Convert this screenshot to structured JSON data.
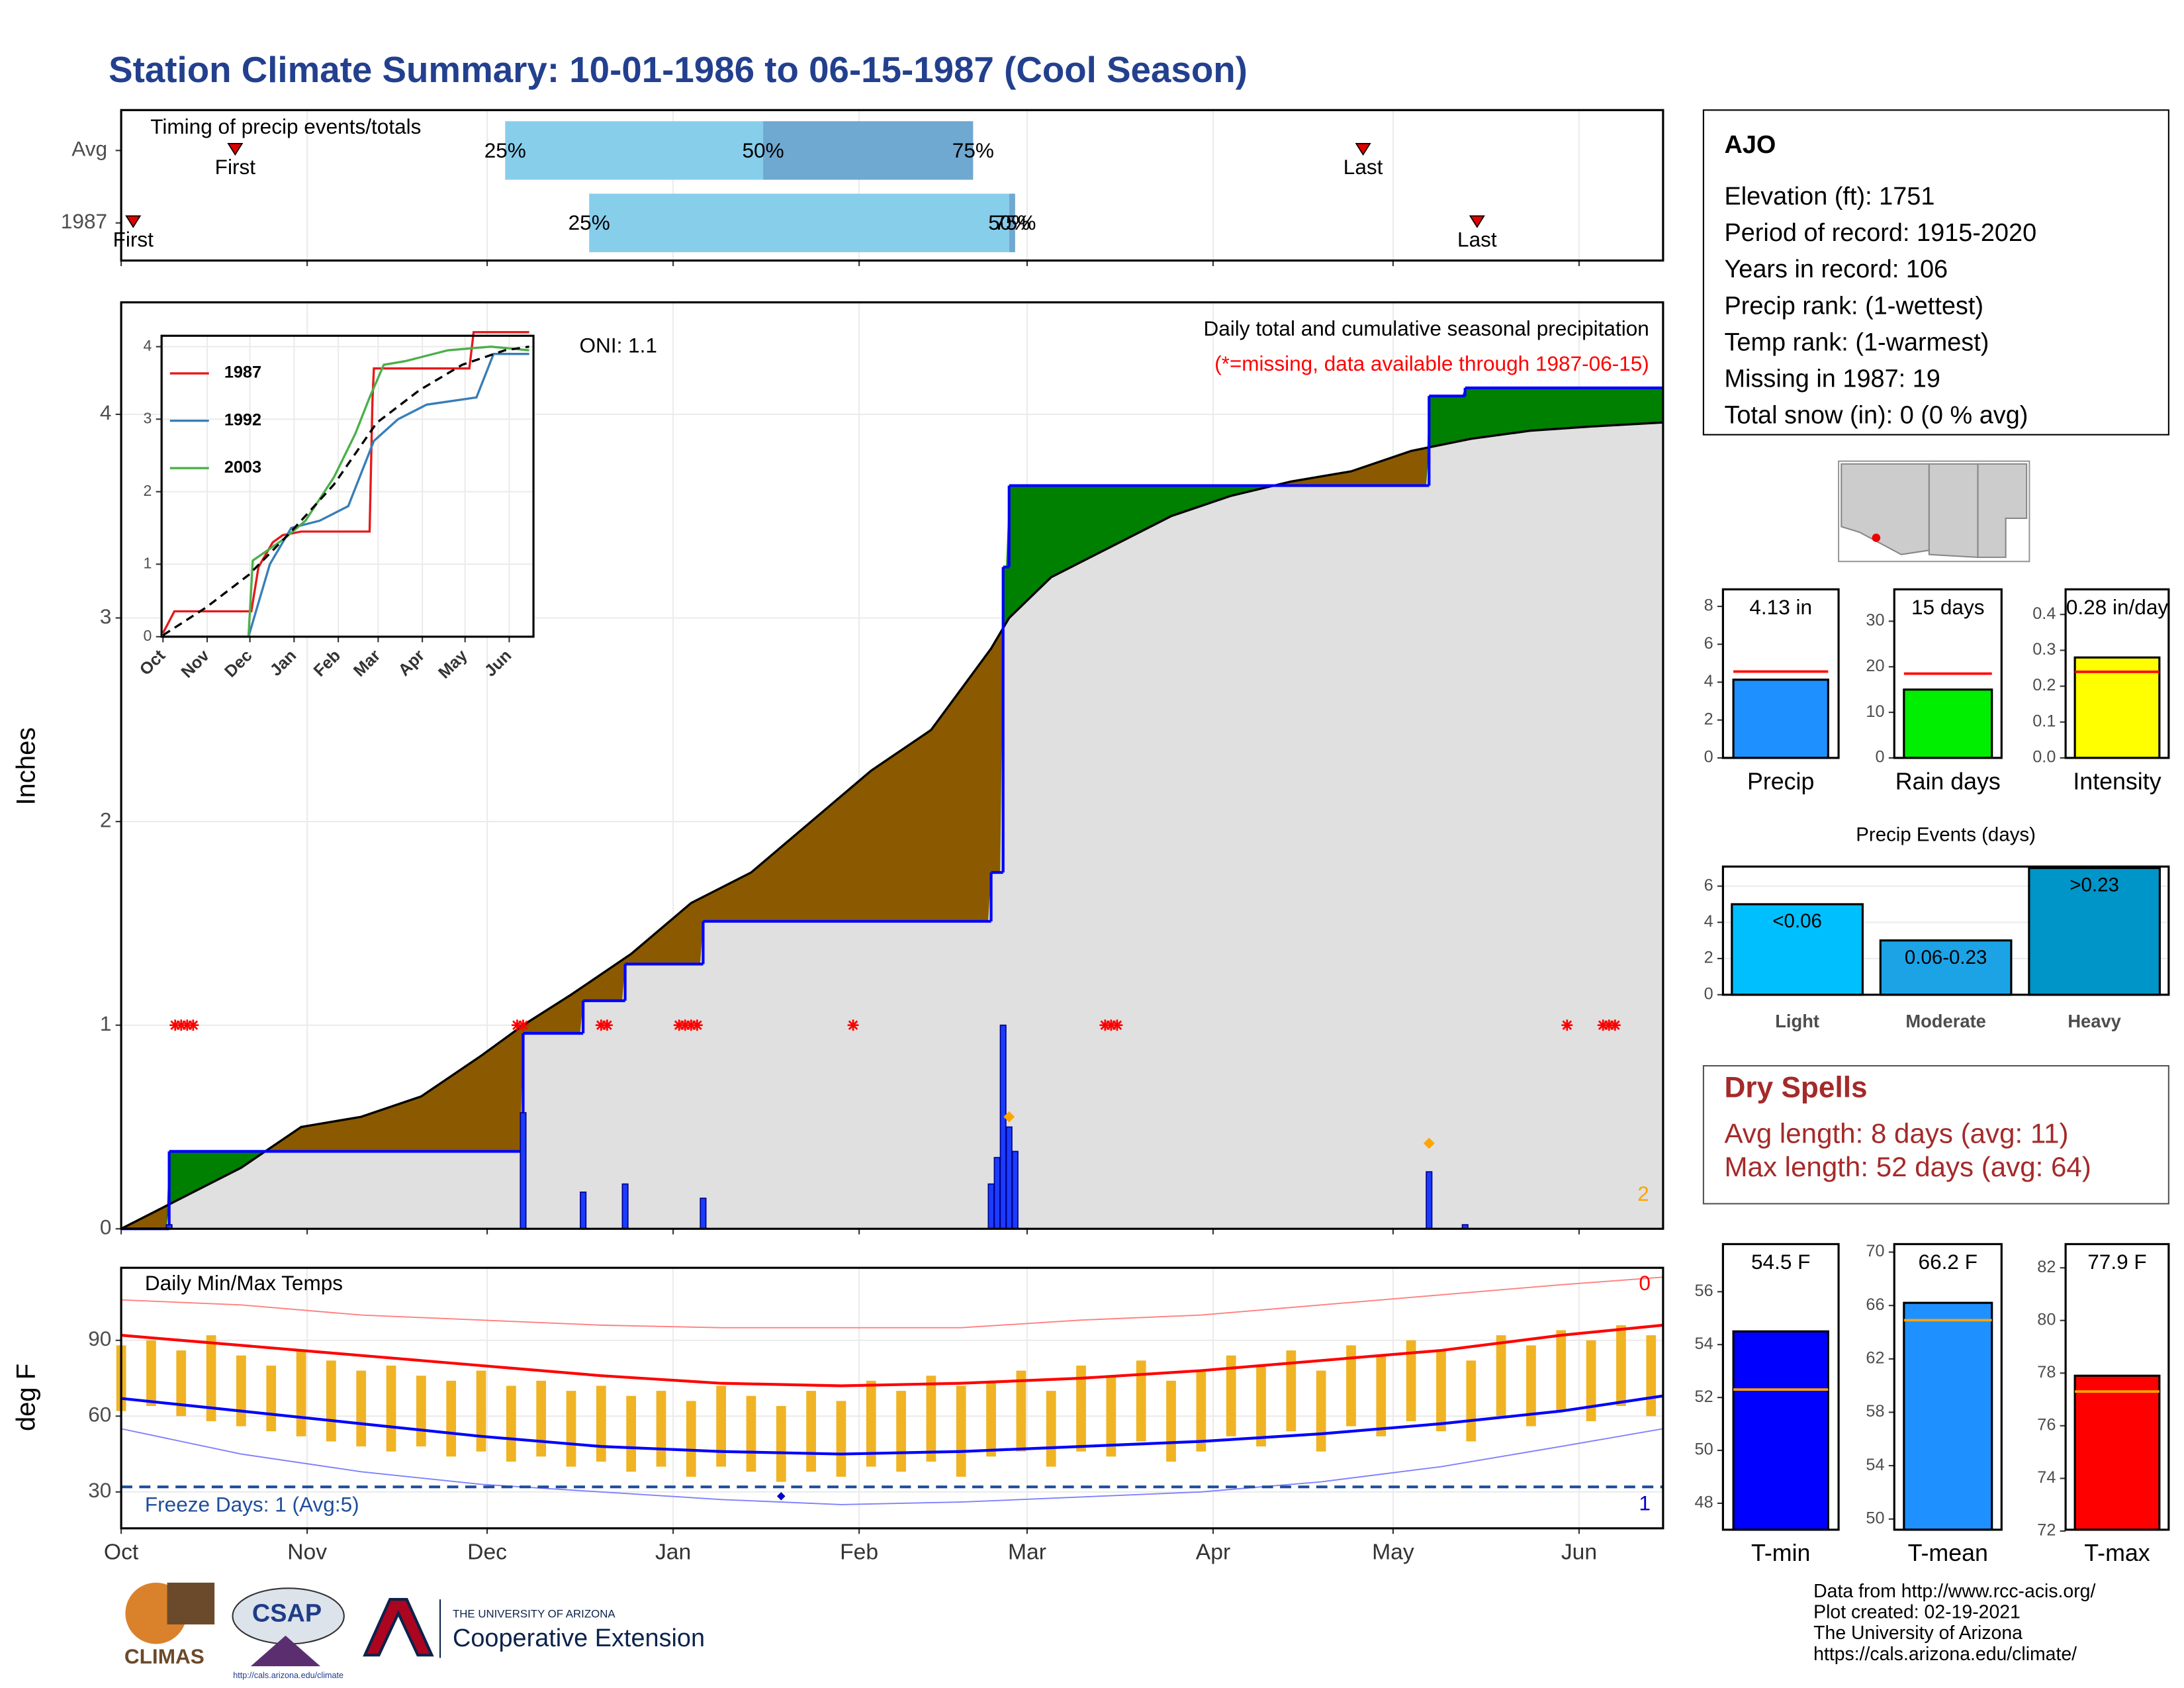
{
  "title": "Station Climate Summary: 10-01-1986 to 06-15-1987 (Cool Season)",
  "station": {
    "lines": [
      "AJO",
      "Elevation (ft): 1751",
      "Period of record: 1915-2020",
      "Years in record: 106",
      "Precip rank:  (1-wettest)",
      "Temp rank:  (1-warmest)",
      "Missing in 1987: 19",
      "Total snow (in): 0 (0 % avg)"
    ]
  },
  "dry_spells": {
    "title": "Dry Spells",
    "lines": [
      "Avg length: 8 days (avg: 11)",
      "Max length: 52 days (avg: 64)"
    ]
  },
  "footer": {
    "lines": [
      "Data from http://www.rcc-acis.org/",
      "Plot created: 02-19-2021",
      "The University of Arizona",
      "https://cals.arizona.edu/climate/"
    ]
  },
  "logos": {
    "climas": "CLIMAS",
    "csap": "CSAP",
    "csap_url": "http://cals.arizona.edu/climate",
    "ua": "THE UNIVERSITY OF ARIZONA",
    "extension": "Cooperative Extension"
  },
  "chart_data": [
    {
      "type": "timing",
      "label": "Timing of precip events/totals",
      "xlim": [
        0,
        257
      ],
      "xticks": [
        0,
        31,
        61,
        92,
        123,
        151,
        182,
        212,
        243
      ],
      "rows": [
        {
          "name": "Avg",
          "first": 19,
          "first_label": "First",
          "last": 207,
          "last_label": "Last",
          "p25": 64,
          "p50": 107,
          "p75": 142,
          "p25_label": "25%",
          "p50_label": "50%",
          "p75_label": "75%"
        },
        {
          "name": "1987",
          "first": 2,
          "first_label": "First",
          "last": 226,
          "last_label": "Last",
          "p25": 78,
          "p50": 148,
          "p75": 149,
          "p25_label": "25%",
          "p50_label": "50%",
          "p75_label": "75%"
        }
      ],
      "colors": [
        "#87ceeb",
        "#6fa8d0"
      ],
      "marker_color": "#e00000"
    },
    {
      "type": "cumulative",
      "ylabel": "Inches",
      "note": "Daily total and cumulative seasonal precipitation",
      "missing_note": "(*=missing, data available through 1987-06-15)",
      "oni": "ONI: 1.1",
      "corner_label": "2",
      "xlim": [
        0,
        257
      ],
      "xticks": [
        0,
        31,
        61,
        92,
        123,
        151,
        182,
        212,
        243
      ],
      "ylim": [
        0,
        4.55
      ],
      "yticks": [
        0,
        1,
        2,
        3,
        4
      ],
      "grid": true,
      "observed": {
        "color": "#0000ff",
        "x": [
          0,
          8,
          67,
          77,
          84,
          97,
          145,
          147,
          148,
          218,
          224
        ],
        "values": [
          0,
          0.38,
          0.96,
          1.12,
          1.3,
          1.51,
          1.75,
          3.25,
          3.65,
          4.09,
          4.13
        ]
      },
      "average": {
        "color": "#000000",
        "x": [
          0,
          10,
          20,
          30,
          40,
          50,
          60,
          67,
          75,
          85,
          95,
          105,
          115,
          125,
          135,
          145,
          148,
          155,
          165,
          175,
          185,
          195,
          205,
          215,
          225,
          235,
          245,
          257
        ],
        "values": [
          0,
          0.15,
          0.3,
          0.5,
          0.55,
          0.65,
          0.85,
          1.0,
          1.15,
          1.35,
          1.6,
          1.75,
          2.0,
          2.25,
          2.45,
          2.85,
          3.0,
          3.2,
          3.35,
          3.5,
          3.6,
          3.67,
          3.72,
          3.82,
          3.88,
          3.92,
          3.94,
          3.96
        ]
      },
      "daily": {
        "color": "#1a3cff",
        "x": [
          8,
          67,
          77,
          84,
          97,
          145,
          146,
          147,
          148,
          149,
          218,
          224
        ],
        "values": [
          0.02,
          0.57,
          0.18,
          0.22,
          0.15,
          0.22,
          0.35,
          1.0,
          0.5,
          0.38,
          0.28,
          0.02
        ]
      },
      "peaks": {
        "color": "#ffa500",
        "x": [
          148,
          218
        ],
        "values": [
          0.55,
          0.42
        ]
      },
      "missing": {
        "color": "#ff0000",
        "y": 1,
        "x": [
          9,
          10,
          11,
          12,
          66,
          67,
          80,
          81,
          93,
          94,
          95,
          96,
          122,
          164,
          165,
          166,
          241,
          247,
          248,
          249
        ]
      },
      "deficit_color": "#8b5a00",
      "surplus_color": "#008000",
      "base_color": "#e0e0e0",
      "corner_color": "#ffa500"
    },
    {
      "type": "line",
      "xlim": [
        -1,
        260
      ],
      "ylim": [
        0,
        4.15
      ],
      "yticks": [
        0,
        1,
        2,
        3,
        4
      ],
      "xticks": [
        {
          "value": 0,
          "label": "Oct"
        },
        {
          "value": 31,
          "label": "Nov"
        },
        {
          "value": 61,
          "label": "Dec"
        },
        {
          "value": 92,
          "label": "Jan"
        },
        {
          "value": 123,
          "label": "Feb"
        },
        {
          "value": 151,
          "label": "Mar"
        },
        {
          "value": 182,
          "label": "Apr"
        },
        {
          "value": 212,
          "label": "May"
        },
        {
          "value": 243,
          "label": "Jun"
        }
      ],
      "series": [
        {
          "name": "1987",
          "color": "#e41a1c",
          "x": [
            0,
            8,
            62,
            67,
            77,
            84,
            97,
            145,
            147,
            148,
            215,
            218,
            257
          ],
          "values": [
            0.05,
            0.35,
            0.35,
            0.96,
            1.3,
            1.4,
            1.45,
            1.45,
            3.25,
            3.7,
            3.7,
            4.2,
            4.2
          ]
        },
        {
          "name": "1992",
          "color": "#377eb8",
          "x": [
            0,
            60,
            75,
            90,
            110,
            130,
            148,
            165,
            185,
            220,
            232,
            257
          ],
          "values": [
            0,
            0,
            1.0,
            1.5,
            1.6,
            1.8,
            2.7,
            3.0,
            3.2,
            3.3,
            3.9,
            3.9
          ]
        },
        {
          "name": "2003",
          "color": "#4daf4a",
          "x": [
            0,
            60,
            63,
            85,
            100,
            120,
            135,
            145,
            155,
            170,
            200,
            230,
            257
          ],
          "values": [
            0,
            0,
            1.05,
            1.35,
            1.6,
            2.2,
            2.8,
            3.3,
            3.75,
            3.8,
            3.95,
            4.0,
            3.95
          ]
        }
      ],
      "average": {
        "color": "#000000",
        "x": [
          0,
          30,
          60,
          90,
          120,
          150,
          180,
          210,
          240,
          257
        ],
        "values": [
          0.02,
          0.4,
          0.85,
          1.45,
          2.1,
          2.95,
          3.4,
          3.75,
          3.95,
          4.0
        ]
      }
    },
    {
      "type": "temps",
      "title": "Daily Min/Max Temps",
      "ylabel": "deg F",
      "xlim": [
        0,
        257
      ],
      "ylim": [
        15.6,
        118.7
      ],
      "yticks": [
        30,
        60,
        90
      ],
      "xticks": [
        {
          "value": 0,
          "label": "Oct"
        },
        {
          "value": 31,
          "label": "Nov"
        },
        {
          "value": 61,
          "label": "Dec"
        },
        {
          "value": 92,
          "label": "Jan"
        },
        {
          "value": 123,
          "label": "Feb"
        },
        {
          "value": 151,
          "label": "Mar"
        },
        {
          "value": 182,
          "label": "Apr"
        },
        {
          "value": 212,
          "label": "May"
        },
        {
          "value": 243,
          "label": "Jun"
        }
      ],
      "bar_color": "#f0b323",
      "x": [
        0,
        5,
        10,
        15,
        20,
        25,
        30,
        35,
        40,
        45,
        50,
        55,
        60,
        65,
        70,
        75,
        80,
        85,
        90,
        95,
        100,
        105,
        110,
        115,
        120,
        125,
        130,
        135,
        140,
        145,
        150,
        155,
        160,
        165,
        170,
        175,
        180,
        185,
        190,
        195,
        200,
        205,
        210,
        215,
        220,
        225,
        230,
        235,
        240,
        245,
        250,
        255
      ],
      "max": [
        88,
        90,
        86,
        92,
        84,
        80,
        86,
        82,
        78,
        80,
        76,
        74,
        78,
        72,
        74,
        70,
        72,
        68,
        70,
        66,
        72,
        68,
        64,
        70,
        66,
        74,
        70,
        76,
        72,
        74,
        78,
        70,
        80,
        76,
        82,
        74,
        78,
        84,
        80,
        86,
        78,
        88,
        84,
        90,
        86,
        82,
        92,
        88,
        94,
        90,
        96,
        92
      ],
      "min": [
        62,
        64,
        60,
        58,
        56,
        54,
        52,
        50,
        48,
        46,
        48,
        44,
        46,
        42,
        44,
        40,
        42,
        38,
        40,
        36,
        40,
        38,
        34,
        38,
        36,
        40,
        38,
        42,
        36,
        44,
        46,
        40,
        46,
        44,
        50,
        42,
        46,
        52,
        48,
        54,
        46,
        56,
        52,
        58,
        54,
        50,
        60,
        56,
        62,
        58,
        64,
        60
      ],
      "lines": [
        {
          "color": "#ff8080",
          "width": 0.9,
          "x": [
            0,
            20,
            40,
            60,
            80,
            100,
            120,
            140,
            160,
            180,
            200,
            220,
            240,
            257
          ],
          "values": [
            106,
            104,
            100,
            98,
            96,
            95,
            95,
            95,
            98,
            100,
            104,
            108,
            112,
            115
          ]
        },
        {
          "color": "#ff0000",
          "width": 2,
          "x": [
            0,
            20,
            40,
            60,
            80,
            100,
            120,
            140,
            160,
            180,
            200,
            220,
            240,
            257
          ],
          "values": [
            92,
            88,
            84,
            80,
            76,
            73,
            72,
            73,
            75,
            78,
            82,
            86,
            92,
            96
          ]
        },
        {
          "color": "#0000ff",
          "width": 2,
          "x": [
            0,
            20,
            40,
            60,
            80,
            100,
            120,
            140,
            160,
            180,
            200,
            220,
            240,
            257
          ],
          "values": [
            67,
            62,
            57,
            52,
            48,
            46,
            45,
            46,
            48,
            50,
            53,
            57,
            62,
            68
          ]
        },
        {
          "color": "#8080ff",
          "width": 0.9,
          "x": [
            0,
            20,
            40,
            60,
            80,
            100,
            120,
            140,
            160,
            180,
            200,
            220,
            240,
            257
          ],
          "values": [
            55,
            45,
            38,
            33,
            30,
            27,
            25,
            26,
            28,
            30,
            34,
            40,
            48,
            55
          ]
        }
      ],
      "freeze": {
        "value": 32,
        "color": "#1f4e9a",
        "label": "Freeze Days: 1 (Avg:5)"
      },
      "freeze_point": {
        "x": 110,
        "value": 28.3,
        "color": "#0000cc"
      },
      "record_high_count": "0",
      "record_low_count": "1"
    },
    {
      "type": "bar",
      "categories": [
        "Precip"
      ],
      "values": [
        4.13
      ],
      "value_labels": [
        "4.13 in"
      ],
      "average": 4.56,
      "average_color": "#ff0000",
      "color": "#1e90ff",
      "ylim": [
        0,
        8.9
      ],
      "yticks": [
        0,
        2,
        4,
        6,
        8
      ]
    },
    {
      "type": "bar",
      "categories": [
        "Rain days"
      ],
      "values": [
        15
      ],
      "value_labels": [
        "15 days"
      ],
      "average": 18.5,
      "average_color": "#ff0000",
      "color": "#00ee00",
      "ylim": [
        0,
        37
      ],
      "yticks": [
        0,
        10,
        20,
        30
      ]
    },
    {
      "type": "bar",
      "categories": [
        "Intensity"
      ],
      "values": [
        0.28
      ],
      "value_labels": [
        "0.28 in/day"
      ],
      "average": 0.24,
      "average_color": "#ff0000",
      "color": "#ffff00",
      "ylim": [
        0,
        0.47
      ],
      "yticks": [
        {
          "value": 0,
          "label": "0.0"
        },
        0.1,
        0.2,
        0.3,
        0.4
      ]
    },
    {
      "type": "bar",
      "title": "Precip Events (days)",
      "categories": [
        "Light",
        "Moderate",
        "Heavy"
      ],
      "values": [
        5,
        3,
        7
      ],
      "bin_labels": [
        "<0.06",
        "0.06-0.23",
        ">0.23"
      ],
      "colors": [
        "#00bfff",
        "#1ca3e6",
        "#0095c8"
      ],
      "ylim": [
        0,
        7.08
      ],
      "yticks": [
        0,
        2,
        4,
        6
      ]
    },
    {
      "type": "bar",
      "categories": [
        "T-min"
      ],
      "values": [
        54.5
      ],
      "value_labels": [
        "54.5 F"
      ],
      "average": 52.3,
      "average_color": "#ffa500",
      "color": "#0000ff",
      "ylim": [
        47,
        57.8
      ],
      "yticks": [
        48,
        50,
        52,
        54,
        56
      ]
    },
    {
      "type": "bar",
      "categories": [
        "T-mean"
      ],
      "values": [
        66.2
      ],
      "value_labels": [
        "66.2 F"
      ],
      "average": 64.9,
      "average_color": "#ffa500",
      "color": "#1e90ff",
      "ylim": [
        49.2,
        70.6
      ],
      "yticks": [
        50,
        54,
        58,
        62,
        66,
        70
      ]
    },
    {
      "type": "bar",
      "categories": [
        "T-max"
      ],
      "values": [
        77.9
      ],
      "value_labels": [
        "77.9 F"
      ],
      "average": 77.3,
      "average_color": "#ffa500",
      "color": "#ff0000",
      "ylim": [
        72.05,
        82.9
      ],
      "yticks": [
        72,
        74,
        76,
        78,
        80,
        82
      ]
    }
  ]
}
